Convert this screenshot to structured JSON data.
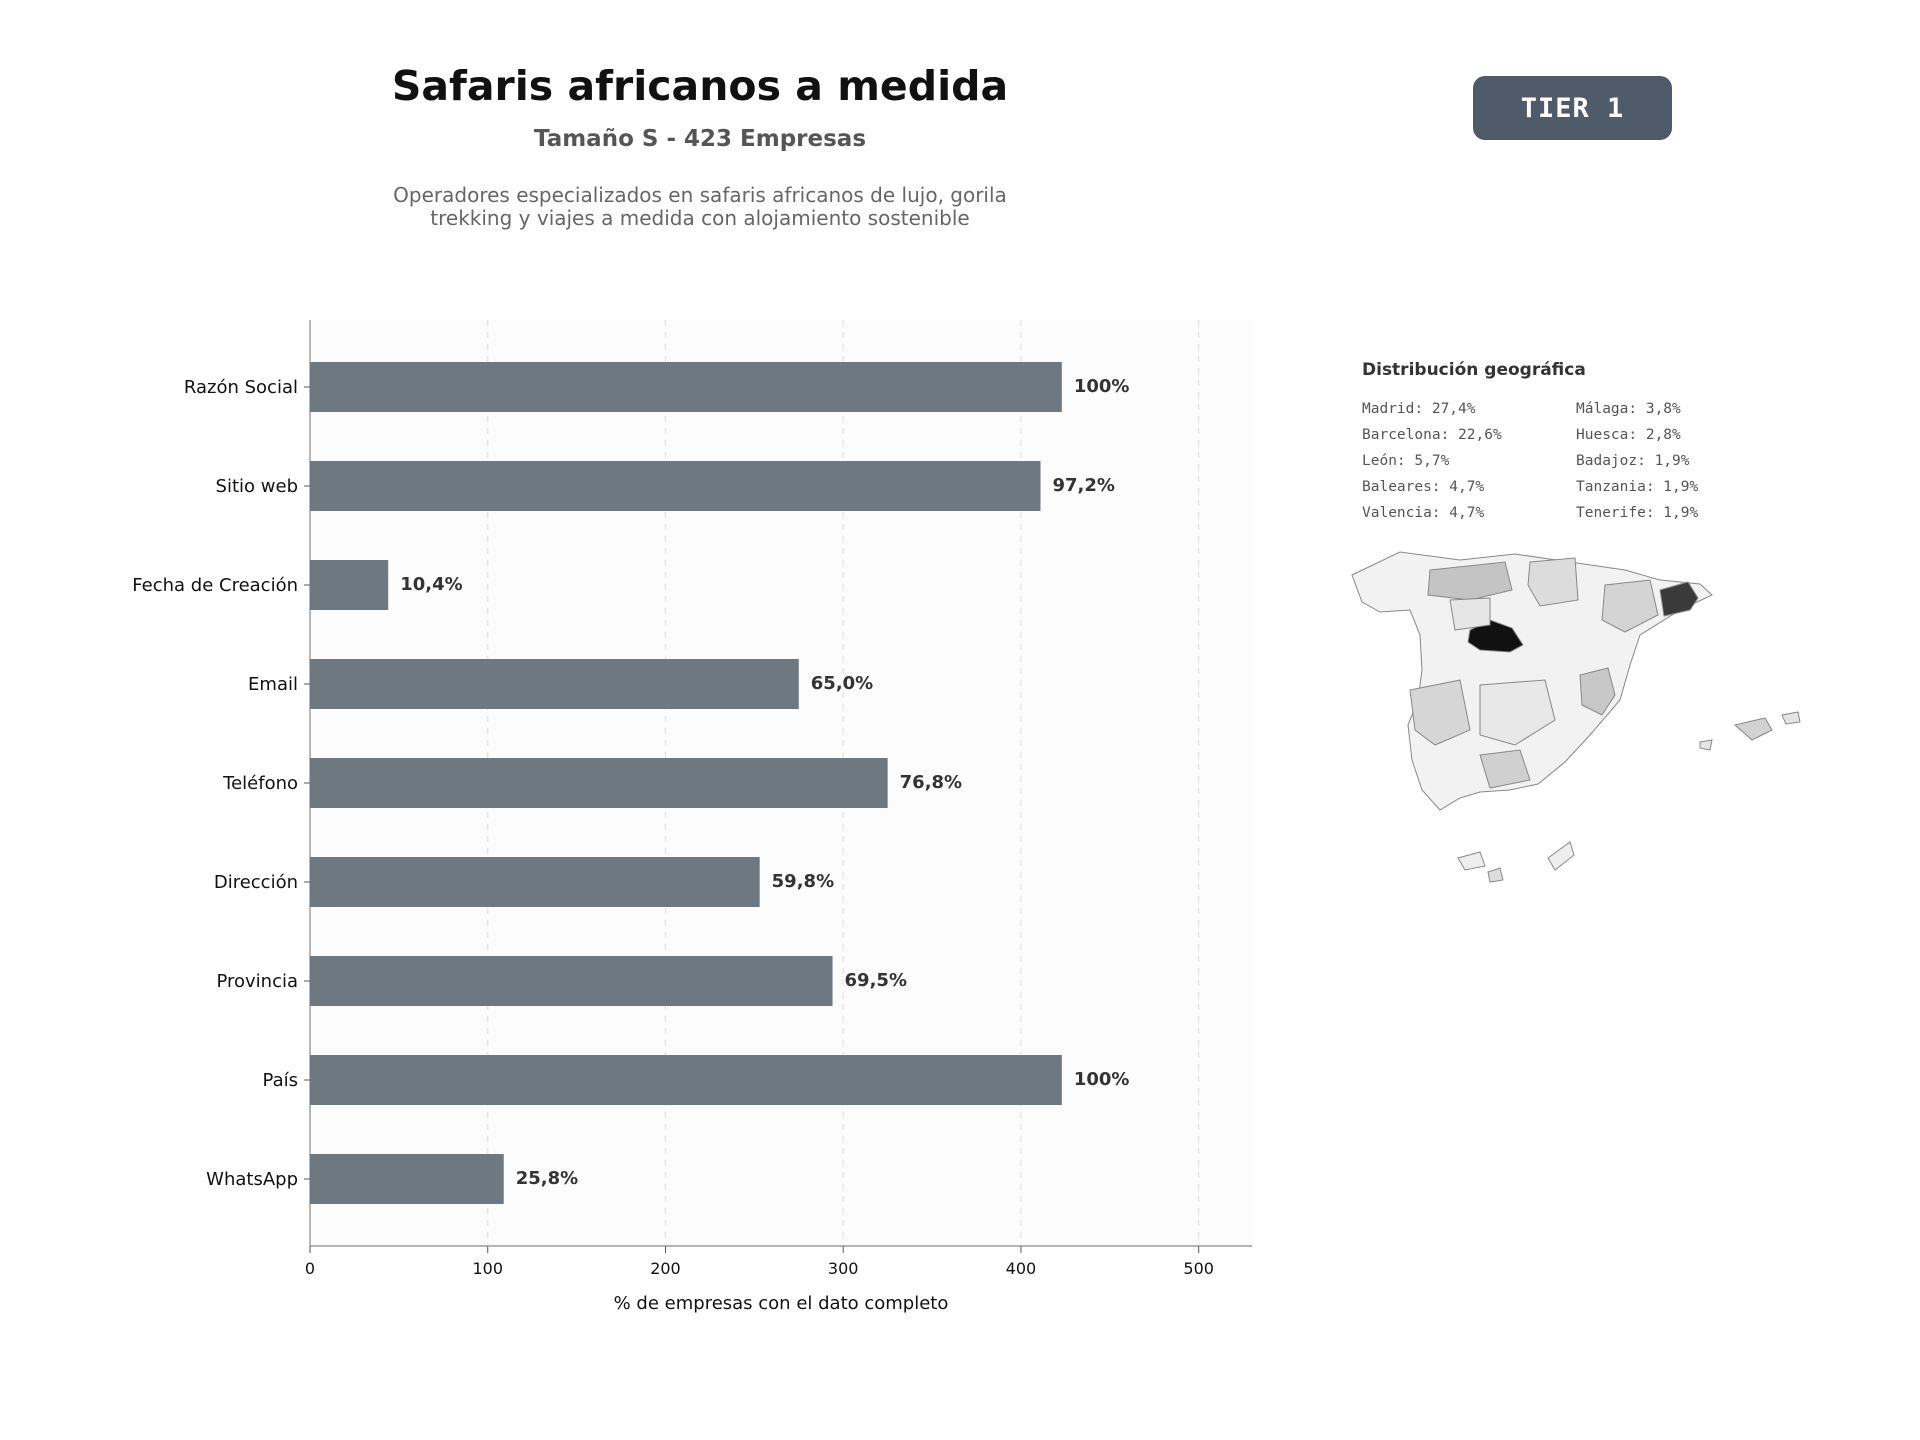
{
  "header": {
    "title": "Safaris africanos a medida",
    "subtitle": "Tamaño S - 423 Empresas",
    "description_line1": "Operadores especializados en safaris africanos de lujo, gorila",
    "description_line2": "trekking y viajes a medida con alojamiento sostenible",
    "tier": "TIER 1"
  },
  "chart_data": {
    "type": "bar",
    "orientation": "horizontal",
    "categories": [
      "Razón Social",
      "Sitio web",
      "Fecha de Creación",
      "Email",
      "Teléfono",
      "Dirección",
      "Provincia",
      "País",
      "WhatsApp"
    ],
    "values": [
      423,
      411,
      44,
      275,
      325,
      253,
      294,
      423,
      109
    ],
    "labels": [
      "100%",
      "97,2%",
      "10,4%",
      "65,0%",
      "76,8%",
      "59,8%",
      "69,5%",
      "100%",
      "25,8%"
    ],
    "xlabel": "% de empresas con el dato completo",
    "xlim": [
      0,
      530
    ],
    "xticks": [
      0,
      100,
      200,
      300,
      400,
      500
    ],
    "grid": "vertical dashed",
    "bar_color": "#6e7881"
  },
  "geo": {
    "title": "Distribución geográfica",
    "col1": [
      "Madrid: 27,4%",
      "Barcelona: 22,6%",
      "León: 5,7%",
      "Baleares: 4,7%",
      "Valencia: 4,7%"
    ],
    "col2": [
      "Málaga: 3,8%",
      "Huesca: 2,8%",
      "Badajoz: 1,9%",
      "Tanzania: 1,9%",
      "Tenerife: 1,9%"
    ]
  }
}
